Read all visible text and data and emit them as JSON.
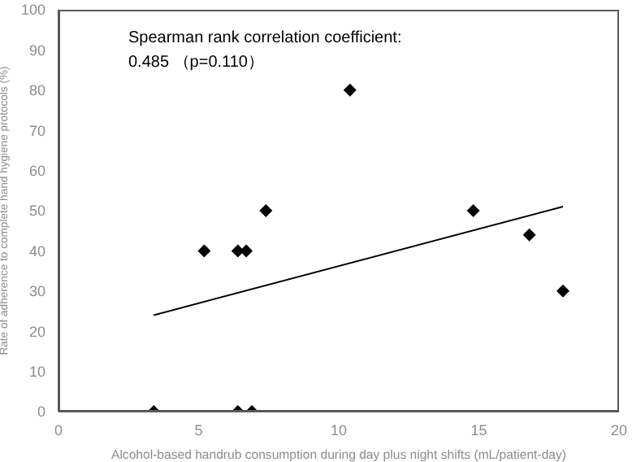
{
  "chart_data": {
    "type": "scatter",
    "xlabel": "Alcohol-based handrub consumption during day plus night shifts (mL/patient-day)",
    "ylabel": "Rate of adherence to complete hand hygiene protocols (%)",
    "annotations": [
      "Spearman rank correlation coefficient:",
      "0.485 （p=0.110）"
    ],
    "series": [
      {
        "type": "scatter",
        "color": "#000000",
        "marker": "diamond",
        "x": [
          3.4,
          5.2,
          6.4,
          6.7,
          6.4,
          6.9,
          7.4,
          10.4,
          14.8,
          16.8,
          18.0
        ],
        "values": [
          0,
          40,
          40,
          40,
          0,
          0,
          50,
          80,
          50,
          44,
          30
        ]
      },
      {
        "type": "line",
        "color": "#000000",
        "marker": "none",
        "x": [
          3.4,
          18.0
        ],
        "values": [
          24,
          51
        ]
      }
    ],
    "xlim": [
      0,
      20
    ],
    "xticks": [
      0,
      5,
      10,
      15,
      20
    ],
    "ylim": [
      0,
      100
    ],
    "yticks": [
      0,
      10,
      20,
      30,
      40,
      50,
      60,
      70,
      80,
      90,
      100
    ],
    "grid": false
  }
}
